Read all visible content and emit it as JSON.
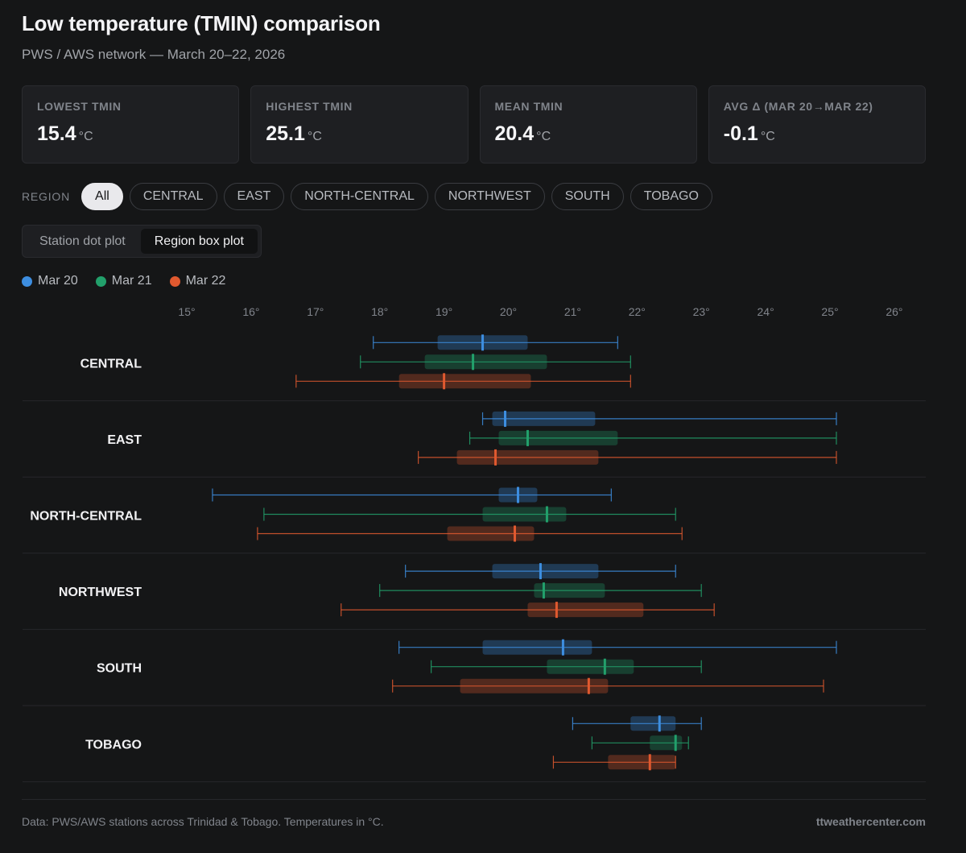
{
  "header": {
    "title": "Low temperature (TMIN) comparison",
    "subtitle": "PWS / AWS network — March 20–22, 2026"
  },
  "cards": [
    {
      "label": "LOWEST TMIN",
      "value": "15.4",
      "unit": "°C"
    },
    {
      "label": "HIGHEST TMIN",
      "value": "25.1",
      "unit": "°C"
    },
    {
      "label": "MEAN TMIN",
      "value": "20.4",
      "unit": "°C"
    },
    {
      "label": "AVG Δ (MAR 20→MAR 22)",
      "value": "-0.1",
      "unit": "°C"
    }
  ],
  "filter": {
    "label": "REGION",
    "chips": [
      "All",
      "CENTRAL",
      "EAST",
      "NORTH-CENTRAL",
      "NORTHWEST",
      "SOUTH",
      "TOBAGO"
    ],
    "selected": "All"
  },
  "view_toggle": {
    "options": [
      "Station dot plot",
      "Region box plot"
    ],
    "selected": "Region box plot"
  },
  "footer": {
    "note": "Data: PWS/AWS stations across Trinidad & Tobago. Temperatures in °C.",
    "brand": "ttweathercenter.com"
  },
  "chart_data": {
    "type": "box",
    "x_range": [
      15,
      26
    ],
    "x_ticks": [
      15,
      16,
      17,
      18,
      19,
      20,
      21,
      22,
      23,
      24,
      25,
      26
    ],
    "x_tick_suffix": "°",
    "grid": false,
    "legend_placement": "top-left",
    "series": [
      {
        "name": "Mar 20",
        "color": "#3d8ee0"
      },
      {
        "name": "Mar 21",
        "color": "#22a06b"
      },
      {
        "name": "Mar 22",
        "color": "#e0592f"
      }
    ],
    "categories": [
      "CENTRAL",
      "EAST",
      "NORTH-CENTRAL",
      "NORTHWEST",
      "SOUTH",
      "TOBAGO"
    ],
    "boxes": [
      [
        {
          "min": 17.9,
          "q1": 18.9,
          "median": 19.6,
          "q3": 20.3,
          "max": 21.7
        },
        {
          "min": 17.7,
          "q1": 18.7,
          "median": 19.45,
          "q3": 20.6,
          "max": 21.9
        },
        {
          "min": 16.7,
          "q1": 18.3,
          "median": 19.0,
          "q3": 20.35,
          "max": 21.9
        }
      ],
      [
        {
          "min": 19.6,
          "q1": 19.75,
          "median": 19.95,
          "q3": 21.35,
          "max": 25.1
        },
        {
          "min": 19.4,
          "q1": 19.85,
          "median": 20.3,
          "q3": 21.7,
          "max": 25.1
        },
        {
          "min": 18.6,
          "q1": 19.2,
          "median": 19.8,
          "q3": 21.4,
          "max": 25.1
        }
      ],
      [
        {
          "min": 15.4,
          "q1": 19.85,
          "median": 20.15,
          "q3": 20.45,
          "max": 21.6
        },
        {
          "min": 16.2,
          "q1": 19.6,
          "median": 20.6,
          "q3": 20.9,
          "max": 22.6
        },
        {
          "min": 16.1,
          "q1": 19.05,
          "median": 20.1,
          "q3": 20.4,
          "max": 22.7
        }
      ],
      [
        {
          "min": 18.4,
          "q1": 19.75,
          "median": 20.5,
          "q3": 21.4,
          "max": 22.6
        },
        {
          "min": 18.0,
          "q1": 20.4,
          "median": 20.55,
          "q3": 21.5,
          "max": 23.0
        },
        {
          "min": 17.4,
          "q1": 20.3,
          "median": 20.75,
          "q3": 22.1,
          "max": 23.2
        }
      ],
      [
        {
          "min": 18.3,
          "q1": 19.6,
          "median": 20.85,
          "q3": 21.3,
          "max": 25.1
        },
        {
          "min": 18.8,
          "q1": 20.6,
          "median": 21.5,
          "q3": 21.95,
          "max": 23.0
        },
        {
          "min": 18.2,
          "q1": 19.25,
          "median": 21.25,
          "q3": 21.55,
          "max": 24.9
        }
      ],
      [
        {
          "min": 21.0,
          "q1": 21.9,
          "median": 22.35,
          "q3": 22.6,
          "max": 23.0
        },
        {
          "min": 21.3,
          "q1": 22.2,
          "median": 22.6,
          "q3": 22.7,
          "max": 22.8
        },
        {
          "min": 20.7,
          "q1": 21.55,
          "median": 22.2,
          "q3": 22.6,
          "max": 22.6
        }
      ]
    ]
  }
}
